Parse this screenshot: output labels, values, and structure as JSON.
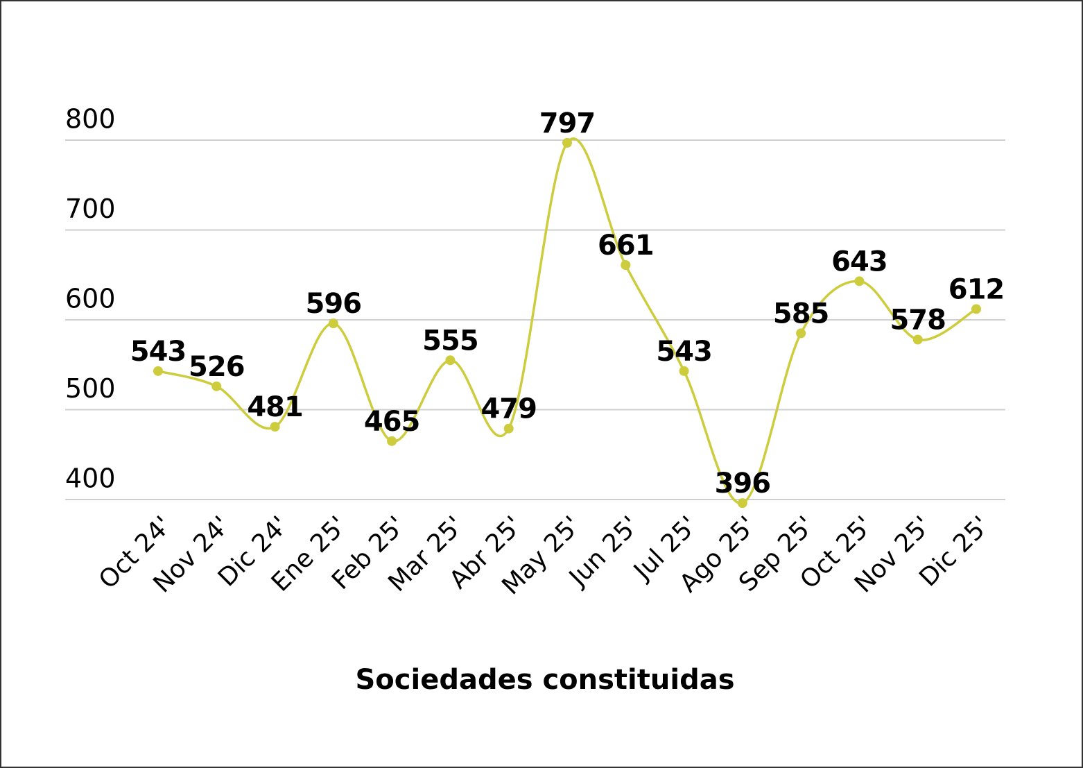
{
  "chart_data": {
    "type": "line",
    "x_label": "Sociedades constituidas",
    "categories": [
      "Oct 24'",
      "Nov 24'",
      "Dic 24'",
      "Ene 25'",
      "Feb 25'",
      "Mar 25'",
      "Abr 25'",
      "May 25'",
      "Jun 25'",
      "Jul 25'",
      "Ago 25'",
      "Sep 25'",
      "Oct 25'",
      "Nov 25'",
      "Dic 25'"
    ],
    "values": [
      543,
      526,
      481,
      596,
      465,
      555,
      479,
      797,
      661,
      543,
      396,
      585,
      643,
      578,
      612
    ],
    "color": "#cccc3c",
    "ylim": [
      400,
      800
    ],
    "yticks": [
      400,
      500,
      600,
      700,
      800
    ],
    "grid": true
  }
}
